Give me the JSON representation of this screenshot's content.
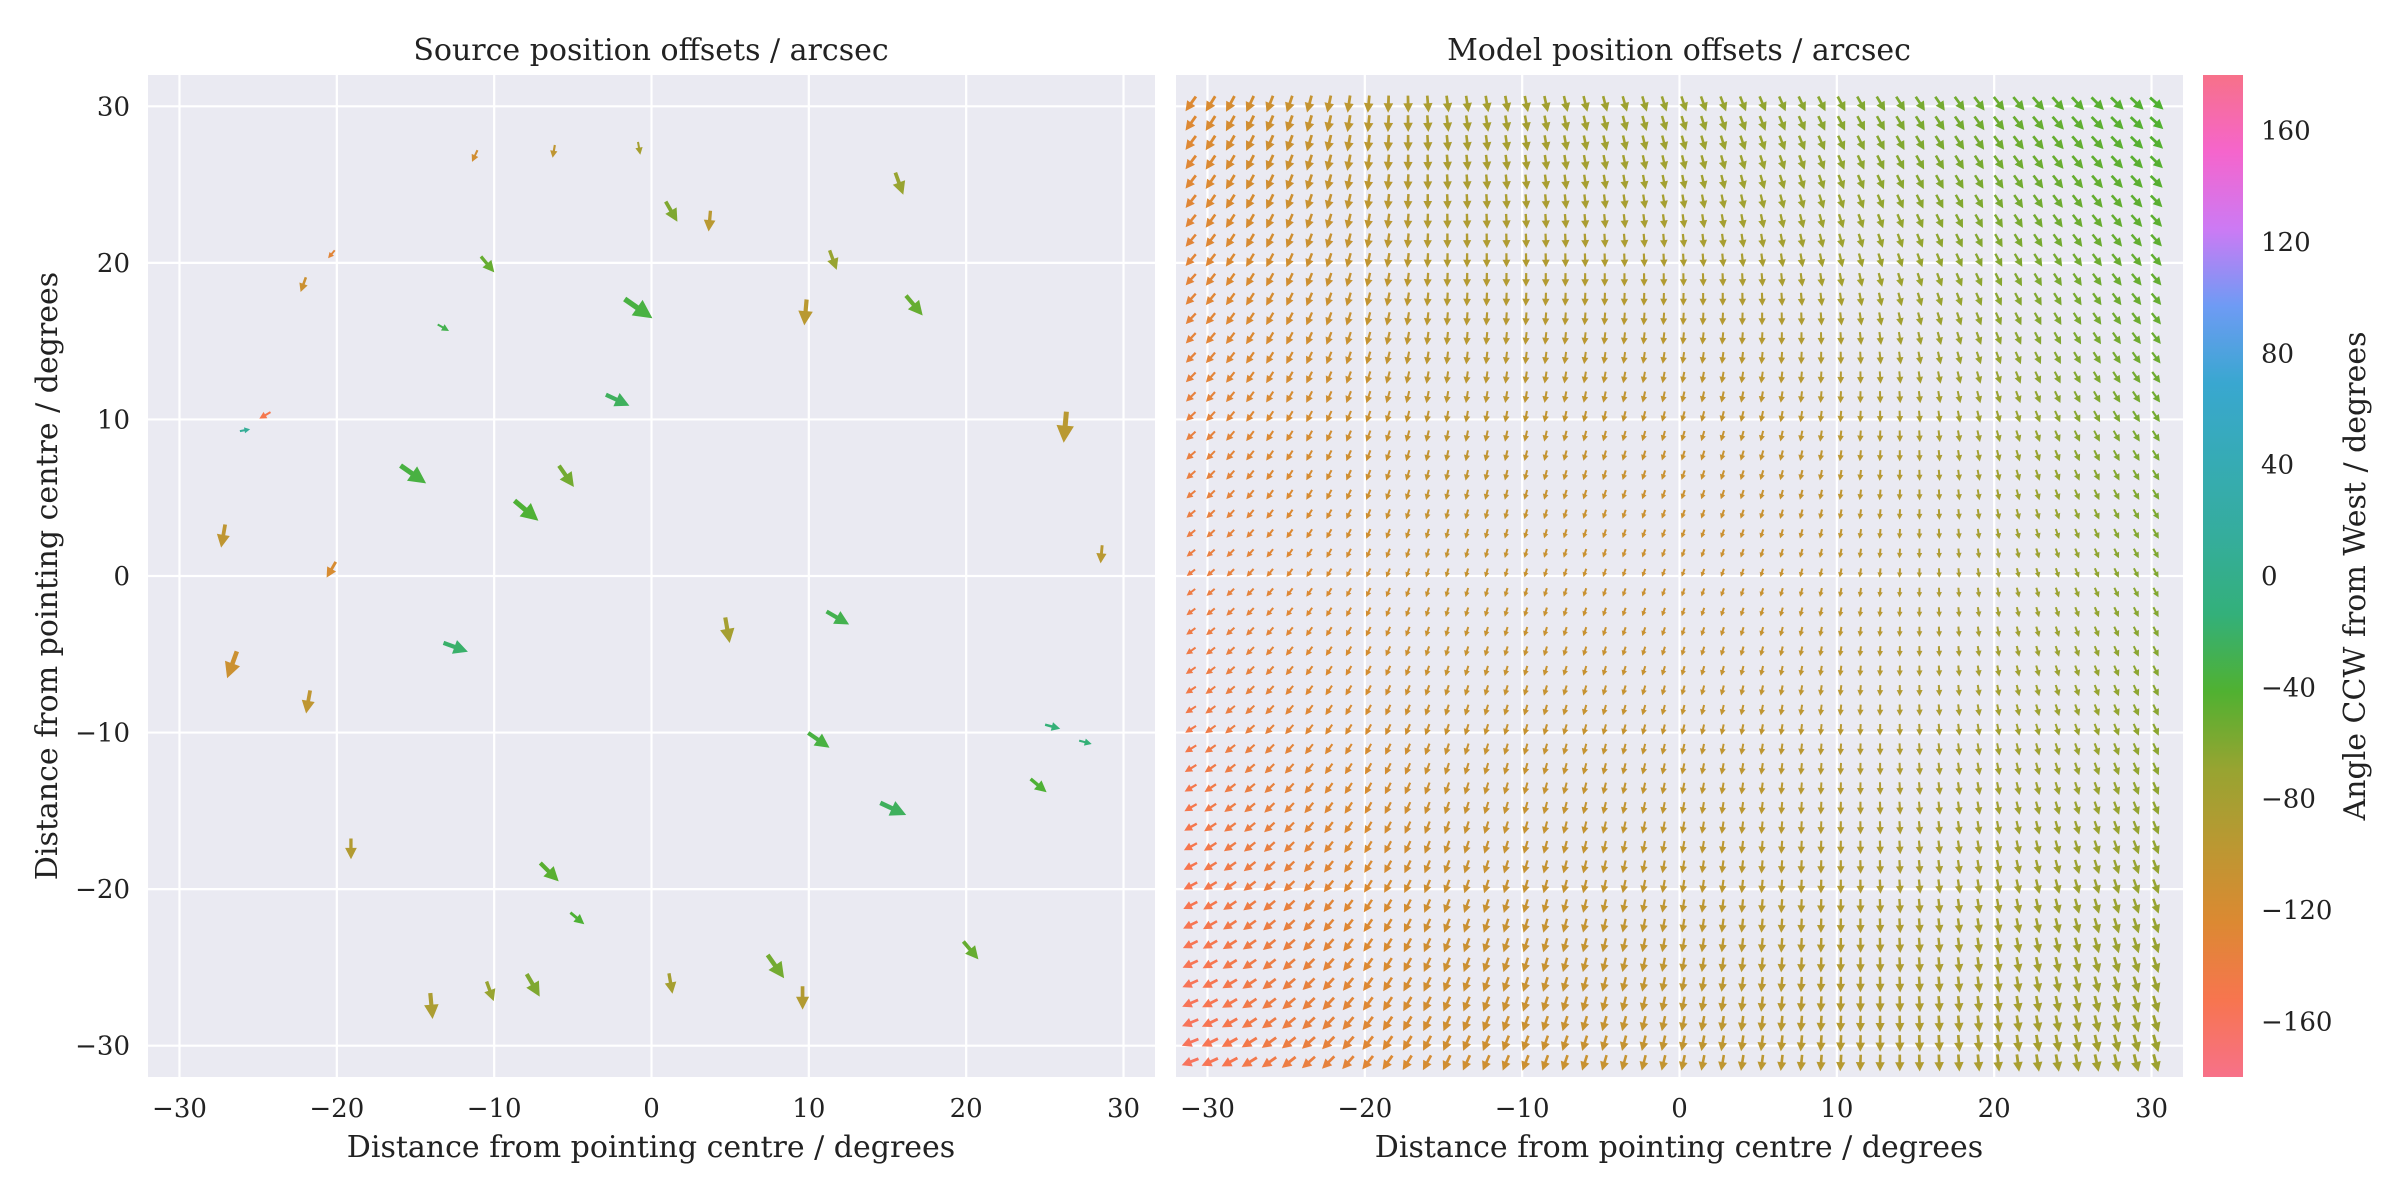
{
  "colors": {
    "axes_bg": "#eaeaf2",
    "grid": "#ffffff",
    "colormap": [
      "#f77189",
      "#f7754f",
      "#dc8932",
      "#bb9832",
      "#97a431",
      "#50b131",
      "#33b07a",
      "#35ad9c",
      "#36abb5",
      "#39a7d0",
      "#6e9bf4",
      "#cc7af4",
      "#f565cc",
      "#f77189"
    ]
  },
  "chart_data": [
    {
      "type": "quiver",
      "title": "Source position offsets / arcsec",
      "xlabel": "Distance from pointing centre / degrees",
      "ylabel": "Distance from pointing centre / degrees",
      "xlim": [
        -32,
        32
      ],
      "ylim": [
        -32,
        32
      ],
      "xticks": [
        "−30",
        "−20",
        "−10",
        "0",
        "10",
        "20",
        "30"
      ],
      "yticks": [
        "30",
        "20",
        "10",
        "0",
        "−10",
        "−20",
        "−30"
      ],
      "sample_vectors": [
        {
          "x": -27.2,
          "y": 2.7,
          "angle": -100,
          "length": 0.9
        },
        {
          "x": -26.6,
          "y": -5.5,
          "angle": -110,
          "length": 1.1
        },
        {
          "x": -24.5,
          "y": 10.3,
          "angle": -150,
          "length": 0.5
        },
        {
          "x": -20.3,
          "y": 0.5,
          "angle": -120,
          "length": 0.7
        },
        {
          "x": -14.0,
          "y": -27.3,
          "angle": -85,
          "length": 1.0
        },
        {
          "x": -15.3,
          "y": 6.6,
          "angle": -35,
          "length": 1.2
        },
        {
          "x": -8.1,
          "y": 4.3,
          "angle": -40,
          "length": 1.2
        },
        {
          "x": -5.5,
          "y": 6.5,
          "angle": -55,
          "length": 1.0
        },
        {
          "x": -2.3,
          "y": 11.3,
          "angle": -25,
          "length": 1.0
        },
        {
          "x": -1.0,
          "y": 17.2,
          "angle": -35,
          "length": 1.3
        },
        {
          "x": 1.2,
          "y": 23.4,
          "angle": -60,
          "length": 0.9
        },
        {
          "x": 3.7,
          "y": 22.8,
          "angle": -95,
          "length": 0.8
        },
        {
          "x": 9.8,
          "y": 17.0,
          "angle": -95,
          "length": 1.0
        },
        {
          "x": 11.5,
          "y": 20.3,
          "angle": -70,
          "length": 0.8
        },
        {
          "x": 15.7,
          "y": 25.2,
          "angle": -70,
          "length": 0.9
        },
        {
          "x": 16.6,
          "y": 17.4,
          "angle": -50,
          "length": 1.0
        },
        {
          "x": 26.3,
          "y": 9.7,
          "angle": -95,
          "length": 1.2
        },
        {
          "x": 28.6,
          "y": 1.5,
          "angle": -95,
          "length": 0.7
        },
        {
          "x": 11.7,
          "y": -2.6,
          "angle": -30,
          "length": 1.0
        },
        {
          "x": 15.2,
          "y": -14.8,
          "angle": -25,
          "length": 1.1
        },
        {
          "x": 10.5,
          "y": -10.4,
          "angle": -35,
          "length": 1.0
        },
        {
          "x": 4.8,
          "y": -3.3,
          "angle": -80,
          "length": 1.0
        },
        {
          "x": 7.8,
          "y": -24.8,
          "angle": -55,
          "length": 1.1
        },
        {
          "x": 9.6,
          "y": -26.8,
          "angle": -90,
          "length": 0.9
        },
        {
          "x": -10.3,
          "y": -26.4,
          "angle": -70,
          "length": 0.8
        },
        {
          "x": -7.6,
          "y": -26.0,
          "angle": -60,
          "length": 1.0
        },
        {
          "x": -6.6,
          "y": -18.8,
          "angle": -45,
          "length": 1.0
        },
        {
          "x": -4.8,
          "y": -21.8,
          "angle": -40,
          "length": 0.7
        },
        {
          "x": 1.2,
          "y": -25.9,
          "angle": -80,
          "length": 0.8
        },
        {
          "x": 20.2,
          "y": -23.8,
          "angle": -50,
          "length": 0.9
        },
        {
          "x": 24.5,
          "y": -13.3,
          "angle": -40,
          "length": 0.8
        },
        {
          "x": 25.4,
          "y": -9.6,
          "angle": -15,
          "length": 0.6
        },
        {
          "x": 27.5,
          "y": -10.6,
          "angle": -15,
          "length": 0.5
        },
        {
          "x": -19.1,
          "y": -17.3,
          "angle": -90,
          "length": 0.8
        },
        {
          "x": -21.8,
          "y": -7.9,
          "angle": -100,
          "length": 0.9
        },
        {
          "x": -22.1,
          "y": 18.7,
          "angle": -110,
          "length": 0.6
        },
        {
          "x": -20.3,
          "y": 20.6,
          "angle": -130,
          "length": 0.4
        },
        {
          "x": -11.2,
          "y": 26.9,
          "angle": -115,
          "length": 0.5
        },
        {
          "x": -6.2,
          "y": 27.2,
          "angle": -100,
          "length": 0.5
        },
        {
          "x": -0.8,
          "y": 27.4,
          "angle": -80,
          "length": 0.5
        },
        {
          "x": -10.5,
          "y": 20.0,
          "angle": -50,
          "length": 0.8
        },
        {
          "x": -13.3,
          "y": 15.9,
          "angle": -30,
          "length": 0.5
        },
        {
          "x": -25.9,
          "y": 9.3,
          "angle": 10,
          "length": 0.4
        },
        {
          "x": -12.6,
          "y": -4.5,
          "angle": -20,
          "length": 1.0
        }
      ]
    },
    {
      "type": "quiver",
      "title": "Model position offsets / arcsec",
      "xlabel": "Distance from pointing centre / degrees",
      "ylabel": "",
      "xlim": [
        -32,
        32
      ],
      "ylim": [
        -32,
        32
      ],
      "xticks": [
        "−30",
        "−20",
        "−10",
        "0",
        "10",
        "20",
        "30"
      ],
      "yticks": [],
      "grid_range": [
        -31,
        31
      ],
      "grid_spacing": 1.25
    },
    {
      "type": "colorbar",
      "label": "Angle CCW from West / degrees",
      "range": [
        -180,
        180
      ],
      "ticks": [
        "160",
        "120",
        "80",
        "40",
        "0",
        "−40",
        "−80",
        "−120",
        "−160"
      ]
    }
  ]
}
